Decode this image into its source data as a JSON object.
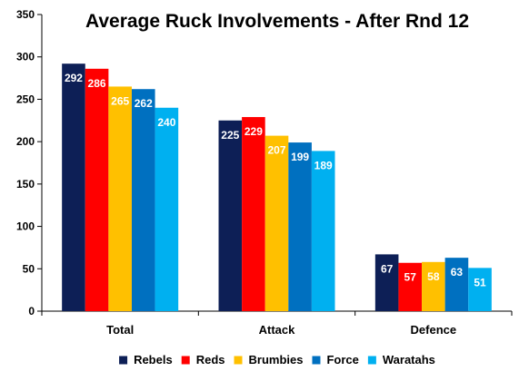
{
  "chart_data": {
    "type": "bar",
    "title": "Average Ruck Involvements - After Rnd 12",
    "categories": [
      "Total",
      "Attack",
      "Defence"
    ],
    "ylim": [
      0,
      350
    ],
    "yticks": [
      0,
      50,
      100,
      150,
      200,
      250,
      300,
      350
    ],
    "grid": false,
    "legend_position": "bottom",
    "series": [
      {
        "name": "Rebels",
        "color": "#0d1f56",
        "values": [
          292,
          225,
          67
        ]
      },
      {
        "name": "Reds",
        "color": "#ff0000",
        "values": [
          286,
          229,
          57
        ]
      },
      {
        "name": "Brumbies",
        "color": "#ffc000",
        "values": [
          265,
          207,
          58
        ]
      },
      {
        "name": "Force",
        "color": "#0070c0",
        "values": [
          262,
          199,
          63
        ]
      },
      {
        "name": "Waratahs",
        "color": "#00b0f0",
        "values": [
          240,
          189,
          51
        ]
      }
    ]
  }
}
